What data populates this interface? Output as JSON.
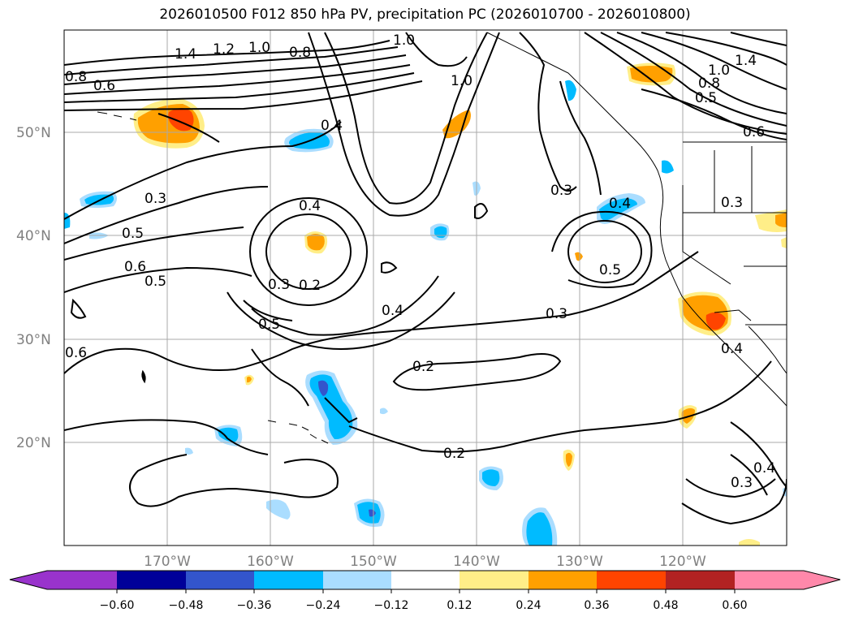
{
  "title": "2026010500 F012 850 hPa PV, precipitation PC (2026010700 - 2026010800)",
  "axes": {
    "lat_labels": [
      "50°N",
      "40°N",
      "30°N",
      "20°N"
    ],
    "lon_labels": [
      "170°W",
      "160°W",
      "150°W",
      "140°W",
      "130°W",
      "120°W"
    ]
  },
  "colorbar": {
    "ticks": [
      "−0.60",
      "−0.48",
      "−0.36",
      "−0.24",
      "−0.12",
      "0.12",
      "0.24",
      "0.36",
      "0.48",
      "0.60"
    ],
    "colors": {
      "extend_low": "#9933cc",
      "c1": "#000099",
      "c2": "#3355cc",
      "c3": "#00bbff",
      "c4": "#aaddff",
      "c5": "#ffffff",
      "c6": "#ffee88",
      "c7": "#ffa000",
      "c8": "#ff4400",
      "c9": "#b22222",
      "c10": "#ff88aa",
      "extend_high": "#ff88aa"
    }
  },
  "contour_labels": [
    "1.4",
    "1.2",
    "1.0",
    "1.0",
    "0.8",
    "0.6",
    "0.8",
    "1.0",
    "1.4",
    "1.0",
    "0.8",
    "0.5",
    "0.6",
    "0.4",
    "0.3",
    "0.5",
    "0.6",
    "0.5",
    "0.4",
    "0.3",
    "0.2",
    "0.5",
    "0.3",
    "0.4",
    "0.5",
    "0.3",
    "0.4",
    "0.3",
    "0.6",
    "0.2",
    "0.2",
    "0.3",
    "0.4",
    "0.4"
  ],
  "colors": {
    "precip_blue": "#00bbff",
    "precip_lightblue": "#aaddff",
    "precip_darkblue": "#3355cc",
    "precip_orange": "#ffa000",
    "precip_yellow": "#ffee88",
    "precip_red": "#ff4400",
    "grid": "#aaaaaa"
  }
}
